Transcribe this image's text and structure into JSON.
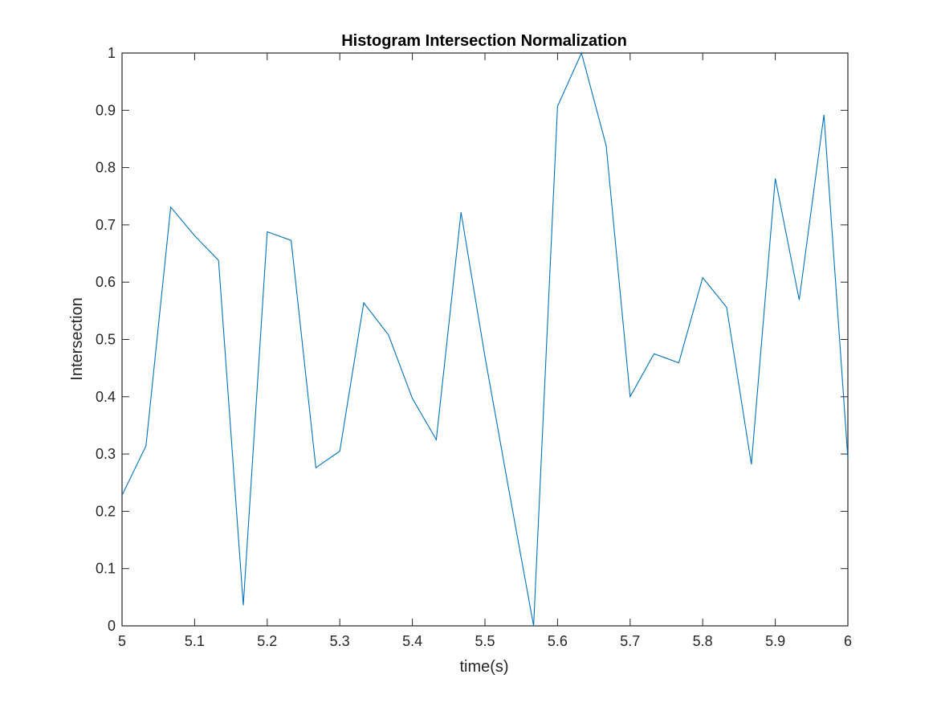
{
  "chart_data": {
    "type": "line",
    "title": "Histogram Intersection Normalization",
    "xlabel": "time(s)",
    "ylabel": "Intersection",
    "xlim": [
      5,
      6
    ],
    "ylim": [
      0,
      1
    ],
    "x_ticks": [
      5,
      5.1,
      5.2,
      5.3,
      5.4,
      5.5,
      5.6,
      5.7,
      5.8,
      5.9,
      6
    ],
    "x_tick_labels": [
      "5",
      "5.1",
      "5.2",
      "5.3",
      "5.4",
      "5.5",
      "5.6",
      "5.7",
      "5.8",
      "5.9",
      "6"
    ],
    "y_ticks": [
      0,
      0.1,
      0.2,
      0.3,
      0.4,
      0.5,
      0.6,
      0.7,
      0.8,
      0.9,
      1
    ],
    "y_tick_labels": [
      "0",
      "0.1",
      "0.2",
      "0.3",
      "0.4",
      "0.5",
      "0.6",
      "0.7",
      "0.8",
      "0.9",
      "1"
    ],
    "grid": false,
    "box": true,
    "series": [
      {
        "color": "#0072bd",
        "x": [
          5.0,
          5.033,
          5.067,
          5.1,
          5.133,
          5.167,
          5.2,
          5.233,
          5.267,
          5.3,
          5.333,
          5.367,
          5.4,
          5.433,
          5.467,
          5.5,
          5.533,
          5.567,
          5.6,
          5.633,
          5.667,
          5.7,
          5.733,
          5.767,
          5.8,
          5.833,
          5.867,
          5.9,
          5.933,
          5.967,
          6.0
        ],
        "y": [
          0.228,
          0.314,
          0.731,
          0.681,
          0.638,
          0.036,
          0.688,
          0.673,
          0.276,
          0.305,
          0.564,
          0.508,
          0.397,
          0.325,
          0.722,
          0.47,
          0.237,
          0.0,
          0.907,
          1.0,
          0.838,
          0.4,
          0.475,
          0.459,
          0.608,
          0.556,
          0.282,
          0.781,
          0.569,
          0.892,
          0.292
        ]
      }
    ]
  },
  "colors": {
    "axis": "#262626",
    "line": "#0072bd",
    "background": "#ffffff"
  }
}
